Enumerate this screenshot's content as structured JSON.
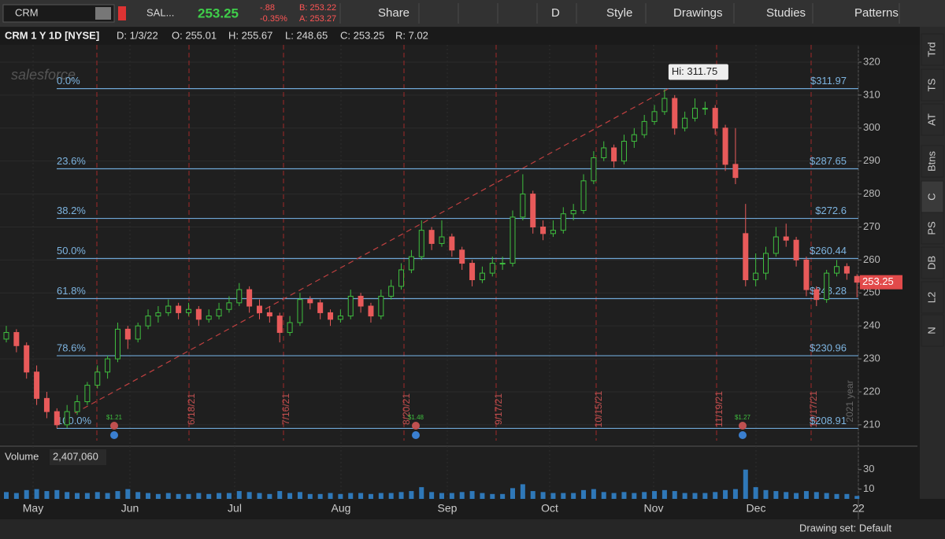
{
  "toolbar": {
    "symbol": "CRM",
    "company": "SAL...",
    "last": "253.25",
    "change": "-.88",
    "change_pct": "-0.35%",
    "bid": "B: 253.22",
    "ask": "A: 253.27",
    "buttons": [
      "Share",
      "D",
      "Style",
      "Drawings",
      "Studies",
      "Patterns"
    ]
  },
  "header": {
    "title": "CRM 1 Y 1D [NYSE]",
    "date": "D: 1/3/22",
    "open": "O: 255.01",
    "high": "H: 255.67",
    "low": "L: 248.65",
    "close": "C: 253.25",
    "range": "R: 7.02"
  },
  "sidebar_tabs": [
    "Trd",
    "TS",
    "AT",
    "Btns",
    "C",
    "PS",
    "DB",
    "L2",
    "N"
  ],
  "chart": {
    "type": "candlestick",
    "watermark": "salesforce",
    "ylim": [
      204,
      325.25
    ],
    "yticks": [
      210,
      220,
      230,
      240,
      250,
      260,
      270,
      280,
      290,
      300,
      310,
      320
    ],
    "fib": [
      {
        "level": "0.0%",
        "value": 311.97,
        "label": "$311.97"
      },
      {
        "level": "23.6%",
        "value": 287.65,
        "label": "$287.65"
      },
      {
        "level": "38.2%",
        "value": 272.6,
        "label": "$272.6"
      },
      {
        "level": "50.0%",
        "value": 260.44,
        "label": "$260.44"
      },
      {
        "level": "61.8%",
        "value": 248.28,
        "label": "$248.28"
      },
      {
        "level": "78.6%",
        "value": 230.96,
        "label": "$230.96"
      },
      {
        "level": "100.0%",
        "value": 208.91,
        "label": "$208.91"
      }
    ],
    "high_label": "Hi: 311.75",
    "last_price": 253.25,
    "event_labels": [
      "6/18/21",
      "7/16/21",
      "8/20/21",
      "9/17/21",
      "10/15/21",
      "11/19/21",
      "12/17/21"
    ],
    "year_label": "2021 year",
    "dividends": [
      "$1.21",
      "$1.48",
      "$1.27"
    ],
    "months": [
      "May",
      "Jun",
      "Jul",
      "Aug",
      "Sep",
      "Oct",
      "Nov",
      "Dec",
      "22"
    ],
    "candles": [
      [
        236,
        240,
        235,
        238
      ],
      [
        238,
        239,
        232,
        234
      ],
      [
        234,
        235,
        224,
        226
      ],
      [
        226,
        228,
        216,
        218
      ],
      [
        218,
        220,
        212,
        214
      ],
      [
        214,
        215,
        209,
        210
      ],
      [
        210,
        216,
        209,
        214
      ],
      [
        214,
        219,
        213,
        217
      ],
      [
        217,
        223,
        216,
        222
      ],
      [
        222,
        228,
        221,
        226
      ],
      [
        226,
        231,
        224,
        230
      ],
      [
        230,
        241,
        229,
        239
      ],
      [
        239,
        240,
        233,
        236
      ],
      [
        236,
        241,
        235,
        240
      ],
      [
        240,
        245,
        239,
        243
      ],
      [
        243,
        246,
        241,
        244
      ],
      [
        244,
        248,
        243,
        246
      ],
      [
        246,
        247,
        242,
        244
      ],
      [
        244,
        247,
        243,
        245
      ],
      [
        245,
        246,
        240,
        242
      ],
      [
        242,
        245,
        241,
        243
      ],
      [
        243,
        247,
        242,
        245
      ],
      [
        245,
        249,
        244,
        247
      ],
      [
        247,
        253,
        246,
        251
      ],
      [
        251,
        252,
        244,
        246
      ],
      [
        246,
        248,
        242,
        244
      ],
      [
        244,
        246,
        241,
        243
      ],
      [
        243,
        244,
        235,
        238
      ],
      [
        238,
        243,
        237,
        241
      ],
      [
        241,
        250,
        240,
        248
      ],
      [
        248,
        249,
        245,
        247
      ],
      [
        247,
        248,
        242,
        244
      ],
      [
        244,
        245,
        240,
        242
      ],
      [
        242,
        245,
        241,
        243
      ],
      [
        243,
        251,
        242,
        249
      ],
      [
        249,
        250,
        244,
        246
      ],
      [
        246,
        247,
        241,
        243
      ],
      [
        243,
        251,
        242,
        249
      ],
      [
        249,
        254,
        248,
        252
      ],
      [
        252,
        259,
        251,
        257
      ],
      [
        257,
        263,
        256,
        261
      ],
      [
        261,
        272,
        260,
        269
      ],
      [
        269,
        270,
        263,
        265
      ],
      [
        265,
        272,
        264,
        267
      ],
      [
        267,
        268,
        261,
        263
      ],
      [
        263,
        264,
        257,
        259
      ],
      [
        259,
        260,
        252,
        254
      ],
      [
        254,
        258,
        253,
        256
      ],
      [
        256,
        261,
        255,
        259
      ],
      [
        259,
        261,
        257,
        259
      ],
      [
        259,
        275,
        258,
        273
      ],
      [
        273,
        286,
        272,
        280
      ],
      [
        280,
        281,
        268,
        270
      ],
      [
        270,
        272,
        266,
        268
      ],
      [
        268,
        272,
        267,
        269
      ],
      [
        269,
        276,
        268,
        274
      ],
      [
        274,
        277,
        272,
        275
      ],
      [
        275,
        286,
        274,
        284
      ],
      [
        284,
        293,
        283,
        291
      ],
      [
        291,
        296,
        290,
        294
      ],
      [
        294,
        295,
        288,
        290
      ],
      [
        290,
        298,
        289,
        296
      ],
      [
        296,
        300,
        294,
        298
      ],
      [
        298,
        304,
        297,
        302
      ],
      [
        302,
        307,
        301,
        305
      ],
      [
        305,
        311.75,
        304,
        309
      ],
      [
        309,
        310,
        298,
        300
      ],
      [
        300,
        305,
        299,
        303
      ],
      [
        303,
        309,
        302,
        306
      ],
      [
        306,
        308,
        304,
        306
      ],
      [
        306,
        307,
        298,
        300
      ],
      [
        300,
        301,
        287,
        289
      ],
      [
        289,
        300,
        283,
        285
      ],
      [
        268,
        277,
        252,
        254
      ],
      [
        254,
        262,
        252,
        256
      ],
      [
        256,
        264,
        254,
        262
      ],
      [
        262,
        270,
        261,
        267
      ],
      [
        267,
        271,
        264,
        266
      ],
      [
        266,
        267,
        258,
        260
      ],
      [
        260,
        261,
        249,
        251
      ],
      [
        251,
        252,
        246,
        248
      ],
      [
        248,
        257,
        247,
        256
      ],
      [
        256,
        260,
        255,
        258
      ],
      [
        258,
        259,
        254,
        256
      ],
      [
        255.01,
        255.67,
        248.65,
        253.25
      ]
    ]
  },
  "volume": {
    "title": "Volume",
    "value": "2,407,060",
    "ylim": [
      0,
      50
    ],
    "yticks": [
      10,
      30
    ],
    "values": [
      7,
      6,
      9,
      10,
      8,
      9,
      7,
      6,
      6,
      7,
      6,
      8,
      10,
      7,
      6,
      5,
      6,
      5,
      5,
      6,
      5,
      6,
      6,
      8,
      7,
      6,
      5,
      8,
      6,
      7,
      5,
      5,
      6,
      5,
      6,
      6,
      5,
      6,
      6,
      7,
      8,
      12,
      7,
      6,
      6,
      7,
      8,
      6,
      5,
      5,
      11,
      15,
      8,
      7,
      6,
      6,
      6,
      9,
      10,
      7,
      6,
      7,
      6,
      7,
      8,
      9,
      8,
      6,
      6,
      6,
      7,
      9,
      10,
      30,
      12,
      9,
      8,
      7,
      6,
      8,
      7,
      6,
      5,
      5,
      3
    ]
  },
  "footer": {
    "drawing_set": "Drawing set: Default"
  }
}
